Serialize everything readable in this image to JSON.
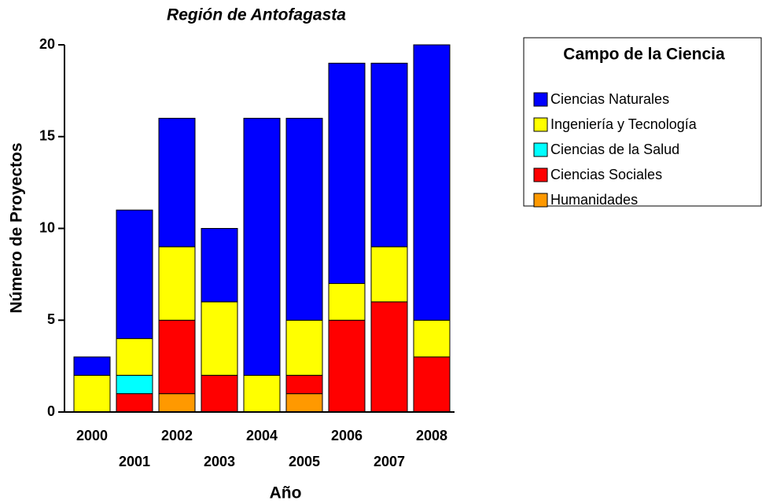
{
  "chart_data": {
    "type": "stacked-bar",
    "title": "Región de Antofagasta",
    "x_label": "Año",
    "y_label": "Número de Proyectos",
    "categories": [
      "2000",
      "2001",
      "2002",
      "2003",
      "2004",
      "2005",
      "2006",
      "2007",
      "2008"
    ],
    "series": [
      {
        "name": "Ciencias Naturales",
        "color": "#0000ff",
        "values": [
          1,
          7,
          7,
          4,
          14,
          11,
          12,
          10,
          15
        ]
      },
      {
        "name": "Ingeniería y Tecnología",
        "color": "#ffff00",
        "values": [
          2,
          2,
          4,
          4,
          2,
          3,
          2,
          3,
          2
        ]
      },
      {
        "name": "Ciencias de la Salud",
        "color": "#00ffff",
        "values": [
          0,
          1,
          0,
          0,
          0,
          0,
          0,
          0,
          0
        ]
      },
      {
        "name": "Ciencias Sociales",
        "color": "#ff0000",
        "values": [
          0,
          1,
          4,
          2,
          0,
          1,
          5,
          6,
          3
        ]
      },
      {
        "name": "Humanidades",
        "color": "#ff9900",
        "values": [
          0,
          0,
          1,
          0,
          0,
          1,
          0,
          0,
          0
        ]
      }
    ],
    "legend_title": "Campo de la Ciencia",
    "legend": "right",
    "ylim": [
      0,
      20
    ],
    "yticks": [
      0,
      5,
      10,
      15,
      20
    ]
  }
}
